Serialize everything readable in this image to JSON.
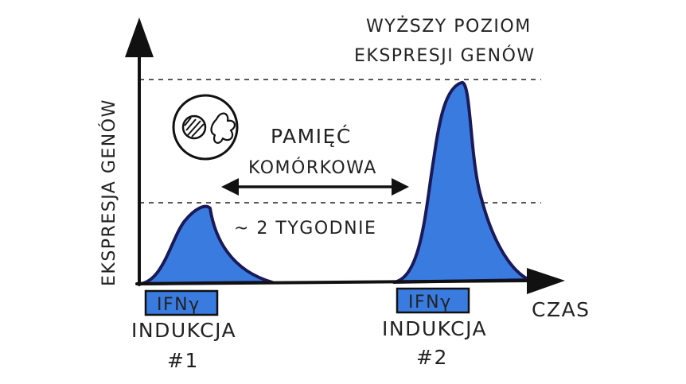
{
  "diagram": {
    "y_axis_label": "EKSPRESJA GENÓW",
    "x_axis_label": "CZAS",
    "top_annotation_line1": "WYŻSZY POZIOM",
    "top_annotation_line2": "EKSPRESJI GENÓW",
    "memory_label_line1": "PAMIĘĆ",
    "memory_label_line2": "KOMÓRKOWA",
    "interval_label": "~ 2 TYGODNIE",
    "stimulus_box_1": "IFNγ",
    "stimulus_box_2": "IFNγ",
    "induction_1_line1": "INDUKCJA",
    "induction_1_line2": "#1",
    "induction_2_line1": "INDUKCJA",
    "induction_2_line2": "#2",
    "peak_1_relative_height": 0.3,
    "peak_2_relative_height": 1.0
  },
  "colors": {
    "peak_fill": "#3a7be0",
    "peak_outline": "#1a1a5a",
    "box_fill": "#3a7be0",
    "ink": "#111111"
  }
}
